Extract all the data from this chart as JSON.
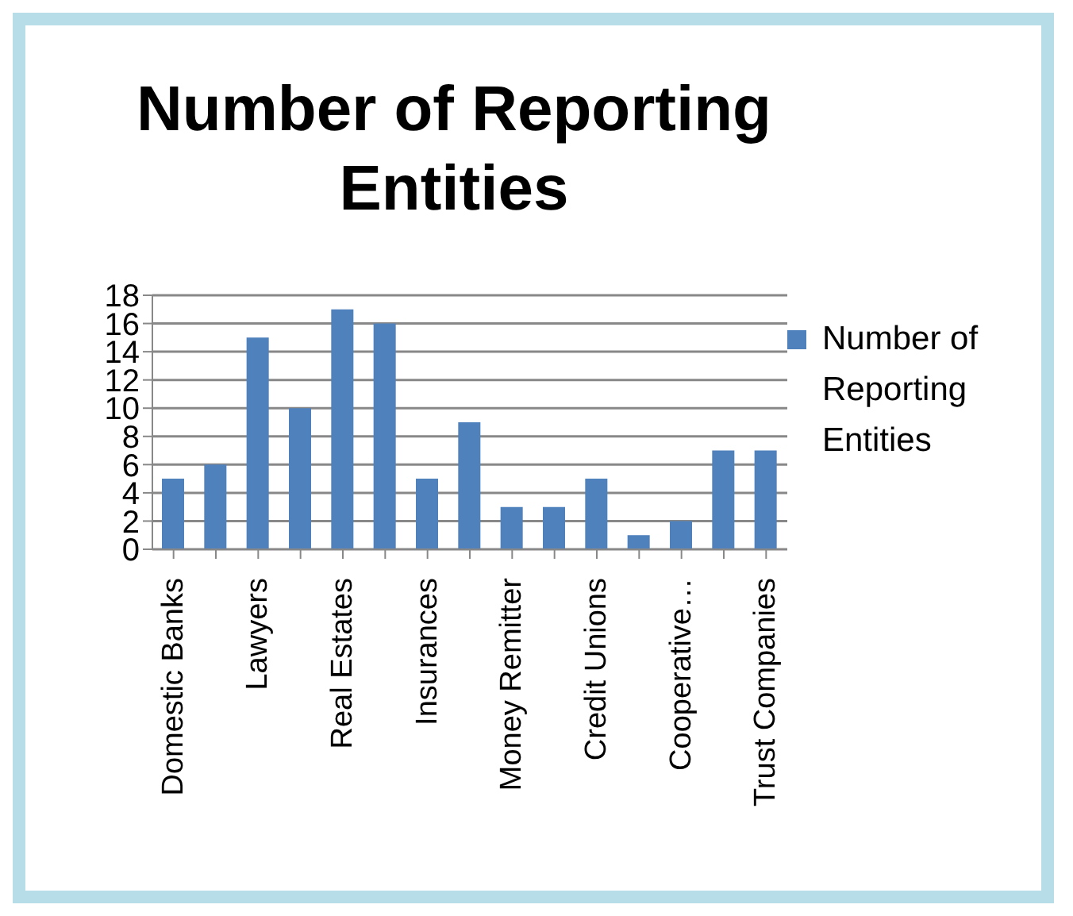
{
  "chart_data": {
    "type": "bar",
    "title": "Number of Reporting Entities",
    "categories": [
      "Domestic Banks",
      null,
      "Lawyers",
      null,
      "Real Estates",
      null,
      "Insurances",
      null,
      "Money Remitter",
      null,
      "Credit Unions",
      null,
      "Cooperative…",
      null,
      "Trust Companies"
    ],
    "series": [
      {
        "name": "Number of Reporting Entities",
        "color": "#4f81bd",
        "values": [
          5,
          6,
          15,
          10,
          17,
          16,
          5,
          9,
          3,
          3,
          5,
          1,
          2,
          7,
          7
        ]
      }
    ],
    "ylim": [
      0,
      18
    ],
    "yticks": [
      0,
      2,
      4,
      6,
      8,
      10,
      12,
      14,
      16,
      18
    ],
    "grid": "y",
    "legend": "right"
  }
}
